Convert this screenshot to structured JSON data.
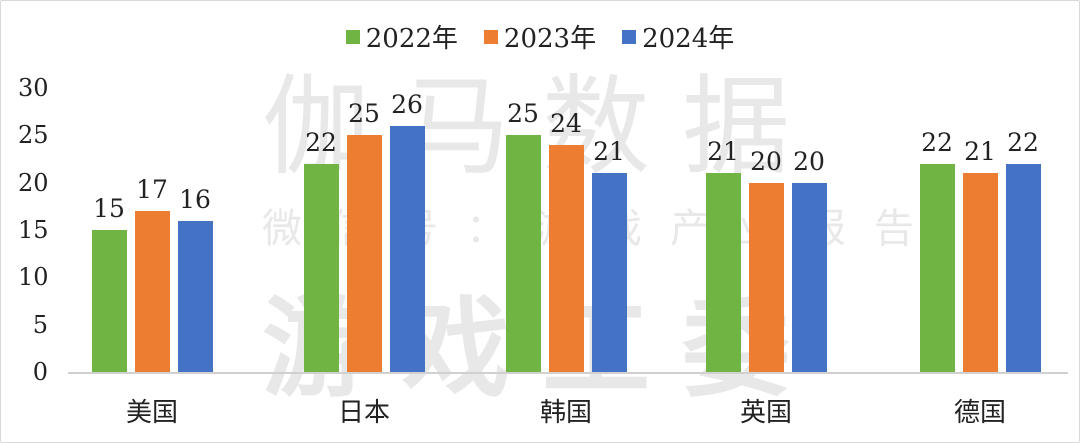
{
  "chart_data": {
    "type": "bar",
    "title": "",
    "xlabel": "",
    "ylabel": "",
    "ylim": [
      0,
      30
    ],
    "yticks": [
      0,
      5,
      10,
      15,
      20,
      25,
      30
    ],
    "grid": false,
    "legend_position": "top",
    "categories": [
      "美国",
      "日本",
      "韩国",
      "英国",
      "德国"
    ],
    "series": [
      {
        "name": "2022年",
        "color": "#70b443",
        "values": [
          15,
          22,
          25,
          21,
          22
        ]
      },
      {
        "name": "2023年",
        "color": "#ed7d31",
        "values": [
          17,
          25,
          24,
          20,
          21
        ]
      },
      {
        "name": "2024年",
        "color": "#4472c4",
        "values": [
          16,
          26,
          21,
          20,
          22
        ]
      }
    ],
    "data_labels": true
  },
  "watermark": {
    "line1": "伽马数据",
    "line2": "微信号：游戏产业报告",
    "line3": "游戏工委"
  }
}
